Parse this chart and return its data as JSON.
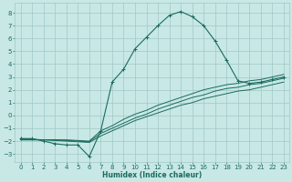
{
  "xlabel": "Humidex (Indice chaleur)",
  "bg_color": "#c8e8e5",
  "grid_color": "#a0c8c5",
  "line_color": "#1a6b5e",
  "xlim": [
    -0.5,
    23.5
  ],
  "ylim": [
    -3.6,
    8.8
  ],
  "xticks": [
    0,
    1,
    2,
    3,
    4,
    5,
    6,
    7,
    8,
    9,
    10,
    11,
    12,
    13,
    14,
    15,
    16,
    17,
    18,
    19,
    20,
    21,
    22,
    23
  ],
  "yticks": [
    -3,
    -2,
    -1,
    0,
    1,
    2,
    3,
    4,
    5,
    6,
    7,
    8
  ],
  "main_x": [
    0,
    1,
    2,
    3,
    4,
    5,
    6,
    7,
    8,
    9,
    10,
    11,
    12,
    13,
    14,
    15,
    16,
    17,
    18,
    19,
    20,
    21,
    22,
    23
  ],
  "main_y": [
    -1.8,
    -1.8,
    -2.0,
    -2.2,
    -2.3,
    -2.3,
    -3.2,
    -1.2,
    2.6,
    3.6,
    5.2,
    6.1,
    7.0,
    7.8,
    8.1,
    7.7,
    7.0,
    5.8,
    4.3,
    2.7,
    2.5,
    2.6,
    2.8,
    3.0
  ],
  "reg1_x": [
    0,
    1,
    2,
    3,
    4,
    5,
    6,
    7,
    8,
    9,
    10,
    11,
    12,
    13,
    14,
    15,
    16,
    17,
    18,
    19,
    20,
    21,
    22,
    23
  ],
  "reg1_y": [
    -1.9,
    -1.9,
    -1.9,
    -1.95,
    -2.0,
    -2.05,
    -2.1,
    -1.6,
    -1.2,
    -0.8,
    -0.4,
    -0.1,
    0.2,
    0.5,
    0.8,
    1.0,
    1.3,
    1.5,
    1.7,
    1.9,
    2.0,
    2.2,
    2.4,
    2.6
  ],
  "reg2_x": [
    0,
    1,
    2,
    3,
    4,
    5,
    6,
    7,
    8,
    9,
    10,
    11,
    12,
    13,
    14,
    15,
    16,
    17,
    18,
    19,
    20,
    21,
    22,
    23
  ],
  "reg2_y": [
    -1.9,
    -1.9,
    -1.9,
    -1.9,
    -1.95,
    -2.0,
    -2.05,
    -1.4,
    -1.0,
    -0.6,
    -0.2,
    0.1,
    0.5,
    0.8,
    1.1,
    1.4,
    1.6,
    1.9,
    2.1,
    2.2,
    2.4,
    2.5,
    2.7,
    2.9
  ],
  "reg3_x": [
    0,
    1,
    2,
    3,
    4,
    5,
    6,
    7,
    8,
    9,
    10,
    11,
    12,
    13,
    14,
    15,
    16,
    17,
    18,
    19,
    20,
    21,
    22,
    23
  ],
  "reg3_y": [
    -1.8,
    -1.85,
    -1.9,
    -1.9,
    -1.9,
    -1.95,
    -2.0,
    -1.2,
    -0.8,
    -0.3,
    0.1,
    0.4,
    0.8,
    1.1,
    1.4,
    1.7,
    2.0,
    2.2,
    2.4,
    2.5,
    2.7,
    2.8,
    3.0,
    3.2
  ]
}
